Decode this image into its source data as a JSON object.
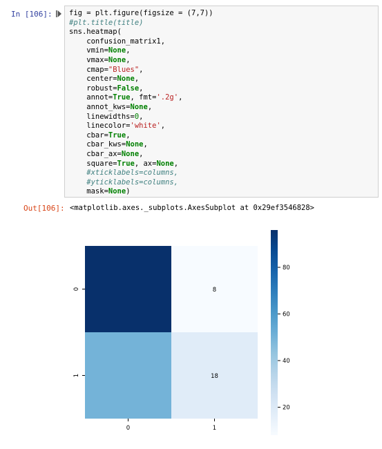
{
  "input_prompt": "In [106]:",
  "output_prompt": "Out[106]:",
  "output_text": "<matplotlib.axes._subplots.AxesSubplot at 0x29ef3546828>",
  "code_lines": [
    [
      {
        "t": "fig = plt.figure(figsize = (7,7))"
      }
    ],
    [
      {
        "t": "#plt.title(title)",
        "c": "cm"
      }
    ],
    [
      {
        "t": "sns.heatmap("
      }
    ],
    [
      {
        "t": "    confusion_matrix1,"
      }
    ],
    [
      {
        "t": "    vmin="
      },
      {
        "t": "None",
        "c": "kw"
      },
      {
        "t": ","
      }
    ],
    [
      {
        "t": "    vmax="
      },
      {
        "t": "None",
        "c": "kw"
      },
      {
        "t": ","
      }
    ],
    [
      {
        "t": "    cmap="
      },
      {
        "t": "\"Blues\"",
        "c": "str"
      },
      {
        "t": ","
      }
    ],
    [
      {
        "t": "    center="
      },
      {
        "t": "None",
        "c": "kw"
      },
      {
        "t": ","
      }
    ],
    [
      {
        "t": "    robust="
      },
      {
        "t": "False",
        "c": "kw"
      },
      {
        "t": ","
      }
    ],
    [
      {
        "t": "    annot="
      },
      {
        "t": "True",
        "c": "kw"
      },
      {
        "t": ", fmt="
      },
      {
        "t": "'.2g'",
        "c": "str"
      },
      {
        "t": ","
      }
    ],
    [
      {
        "t": "    annot_kws="
      },
      {
        "t": "None",
        "c": "kw"
      },
      {
        "t": ","
      }
    ],
    [
      {
        "t": "    linewidths="
      },
      {
        "t": "0",
        "c": "num"
      },
      {
        "t": ","
      }
    ],
    [
      {
        "t": "    linecolor="
      },
      {
        "t": "'white'",
        "c": "str"
      },
      {
        "t": ","
      }
    ],
    [
      {
        "t": "    cbar="
      },
      {
        "t": "True",
        "c": "kw"
      },
      {
        "t": ","
      }
    ],
    [
      {
        "t": "    cbar_kws="
      },
      {
        "t": "None",
        "c": "kw"
      },
      {
        "t": ","
      }
    ],
    [
      {
        "t": "    cbar_ax="
      },
      {
        "t": "None",
        "c": "kw"
      },
      {
        "t": ","
      }
    ],
    [
      {
        "t": "    square="
      },
      {
        "t": "True",
        "c": "kw"
      },
      {
        "t": ", ax="
      },
      {
        "t": "None",
        "c": "kw"
      },
      {
        "t": ","
      }
    ],
    [
      {
        "t": "    #xticklabels=columns,",
        "c": "cm"
      }
    ],
    [
      {
        "t": "    #yticklabels=columns,",
        "c": "cm"
      }
    ],
    [
      {
        "t": "    mask="
      },
      {
        "t": "None",
        "c": "kw"
      },
      {
        "t": ")"
      }
    ]
  ],
  "chart_data": {
    "type": "heatmap",
    "rows": [
      "0",
      "1"
    ],
    "cols": [
      "0",
      "1"
    ],
    "values": [
      [
        96,
        8
      ],
      [
        50,
        18
      ]
    ],
    "annotations": [
      [
        "",
        "8"
      ],
      [
        "",
        "18"
      ]
    ],
    "colormap": "Blues",
    "cbar_range": [
      8,
      96
    ],
    "cbar_ticks": [
      20,
      40,
      60,
      80
    ],
    "cbar_tick_labels": [
      "20",
      "40",
      "60",
      "80"
    ]
  },
  "colors": {
    "in_prompt": "#303f9f",
    "out_prompt": "#d84315",
    "code_bg": "#f7f7f7"
  }
}
